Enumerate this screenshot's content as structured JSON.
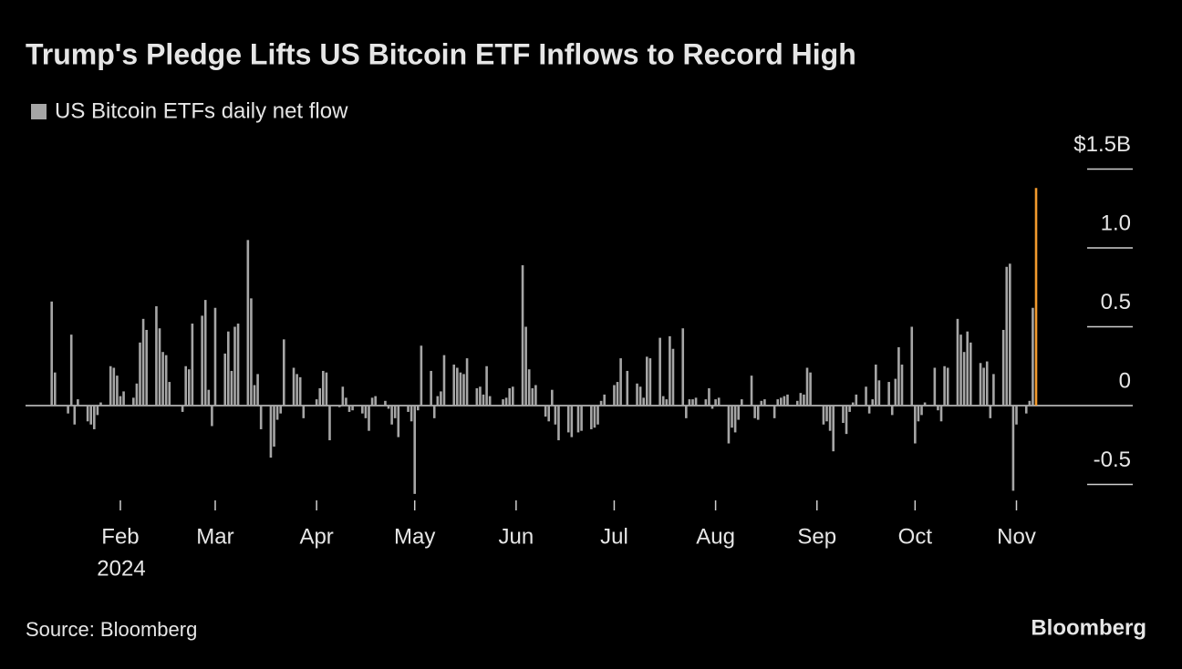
{
  "chart_data": {
    "type": "bar",
    "title": "Trump's Pledge Lifts US Bitcoin ETF Inflows to Record High",
    "source": "Source: Bloomberg",
    "brand": "Bloomberg",
    "x_year_label": "2024",
    "x": [
      11,
      12,
      16,
      17,
      18,
      19,
      22,
      23,
      24,
      25,
      26,
      29,
      30,
      31,
      32,
      33,
      36,
      37,
      38,
      39,
      40,
      43,
      44,
      45,
      46,
      47,
      51,
      52,
      53,
      54,
      57,
      58,
      59,
      60,
      61,
      64,
      65,
      66,
      67,
      68,
      71,
      72,
      73,
      74,
      75,
      78,
      79,
      80,
      81,
      82,
      85,
      86,
      87,
      88,
      92,
      93,
      94,
      95,
      96,
      99,
      100,
      101,
      102,
      103,
      106,
      107,
      108,
      109,
      110,
      113,
      114,
      115,
      116,
      117,
      120,
      121,
      122,
      123,
      124,
      127,
      128,
      129,
      130,
      131,
      134,
      135,
      136,
      137,
      138,
      141,
      142,
      143,
      144,
      145,
      149,
      150,
      151,
      152,
      155,
      156,
      157,
      158,
      159,
      162,
      163,
      164,
      165,
      166,
      169,
      170,
      172,
      173,
      176,
      177,
      178,
      179,
      180,
      183,
      184,
      185,
      187,
      190,
      191,
      192,
      193,
      194,
      197,
      198,
      199,
      200,
      201,
      204,
      205,
      206,
      207,
      208,
      211,
      212,
      213,
      214,
      215,
      218,
      219,
      220,
      221,
      222,
      225,
      226,
      227,
      228,
      229,
      232,
      233,
      234,
      235,
      236,
      239,
      240,
      241,
      242,
      243,
      247,
      248,
      249,
      250,
      253,
      254,
      255,
      256,
      257,
      260,
      261,
      262,
      263,
      264,
      267,
      268,
      269,
      270,
      271,
      274,
      275,
      276,
      277,
      278,
      281,
      282,
      283,
      284,
      285,
      288,
      289,
      290,
      291,
      292,
      295,
      296,
      297,
      298,
      299,
      302,
      303,
      304,
      305,
      306,
      309,
      310,
      311,
      312
    ],
    "series": [
      {
        "name": "US Bitcoin ETFs daily net flow",
        "color": "#a6a6a6",
        "highlight_color": "#f39a2d",
        "values": [
          0.66,
          0.21,
          -0.05,
          0.45,
          -0.12,
          0.04,
          -0.1,
          -0.12,
          -0.15,
          -0.06,
          0.02,
          0.25,
          0.24,
          0.19,
          0.06,
          0.09,
          0.05,
          0.14,
          0.4,
          0.55,
          0.48,
          0.63,
          0.49,
          0.34,
          0.32,
          0.15,
          -0.04,
          0.25,
          0.23,
          0.52,
          0.57,
          0.67,
          0.1,
          -0.13,
          0.62,
          0.33,
          0.47,
          0.22,
          0.5,
          0.52,
          1.05,
          0.68,
          0.13,
          0.2,
          -0.15,
          -0.33,
          -0.26,
          -0.09,
          -0.05,
          0.42,
          0.24,
          0.2,
          0.18,
          -0.08,
          0.04,
          0.11,
          0.22,
          0.21,
          -0.22,
          -0.01,
          0.12,
          0.05,
          -0.04,
          -0.03,
          -0.05,
          -0.08,
          -0.16,
          0.05,
          0.06,
          0.03,
          -0.02,
          -0.12,
          -0.08,
          -0.2,
          -0.04,
          -0.1,
          -0.56,
          -0.03,
          0.38,
          0.22,
          -0.08,
          0.06,
          0.09,
          0.32,
          0.26,
          0.24,
          0.21,
          0.2,
          0.3,
          0.11,
          0.12,
          0.07,
          0.25,
          0.06,
          0.04,
          0.05,
          0.11,
          0.12,
          0.89,
          0.5,
          0.23,
          0.11,
          0.13,
          -0.07,
          -0.1,
          0.1,
          -0.12,
          -0.22,
          -0.17,
          -0.2,
          -0.17,
          -0.16,
          -0.15,
          -0.14,
          -0.12,
          0.03,
          0.07,
          0.13,
          0.15,
          0.3,
          0.22,
          0.14,
          0.12,
          0.05,
          0.31,
          0.3,
          0.43,
          0.06,
          0.04,
          0.44,
          0.36,
          0.49,
          -0.08,
          0.04,
          0.04,
          0.05,
          0.04,
          0.11,
          -0.02,
          0.04,
          0.05,
          -0.24,
          -0.14,
          -0.17,
          -0.09,
          0.04,
          0.19,
          -0.08,
          -0.09,
          0.03,
          0.04,
          -0.08,
          0.04,
          0.05,
          0.06,
          0.07,
          0.03,
          0.08,
          0.07,
          0.24,
          0.21,
          -0.12,
          -0.1,
          -0.16,
          -0.29,
          -0.11,
          -0.18,
          -0.04,
          0.02,
          0.07,
          0.12,
          -0.05,
          0.04,
          0.26,
          0.16,
          0.15,
          -0.06,
          0.17,
          0.37,
          0.26,
          0.5,
          -0.24,
          -0.1,
          -0.06,
          0.02,
          0.24,
          -0.03,
          -0.1,
          0.25,
          0.24,
          0.55,
          0.45,
          0.34,
          0.47,
          0.4,
          0.27,
          0.24,
          0.28,
          -0.08,
          0.2,
          0.48,
          0.88,
          0.9,
          -0.54,
          -0.12,
          -0.05,
          0.03,
          0.62,
          1.38
        ]
      }
    ],
    "xlim": [
      3,
      341
    ],
    "xticks": [
      {
        "value": 32,
        "label": "Feb"
      },
      {
        "value": 61,
        "label": "Mar"
      },
      {
        "value": 92,
        "label": "Apr"
      },
      {
        "value": 122,
        "label": "May"
      },
      {
        "value": 153,
        "label": "Jun"
      },
      {
        "value": 183,
        "label": "Jul"
      },
      {
        "value": 214,
        "label": "Aug"
      },
      {
        "value": 245,
        "label": "Sep"
      },
      {
        "value": 275,
        "label": "Oct"
      },
      {
        "value": 306,
        "label": "Nov"
      }
    ],
    "ylim": [
      -0.6,
      1.5
    ],
    "yticks": [
      -0.5,
      0,
      0.5,
      {
        "value": 1,
        "label": "1.0"
      },
      {
        "value": 1.5,
        "label": "$1.5B"
      }
    ]
  }
}
